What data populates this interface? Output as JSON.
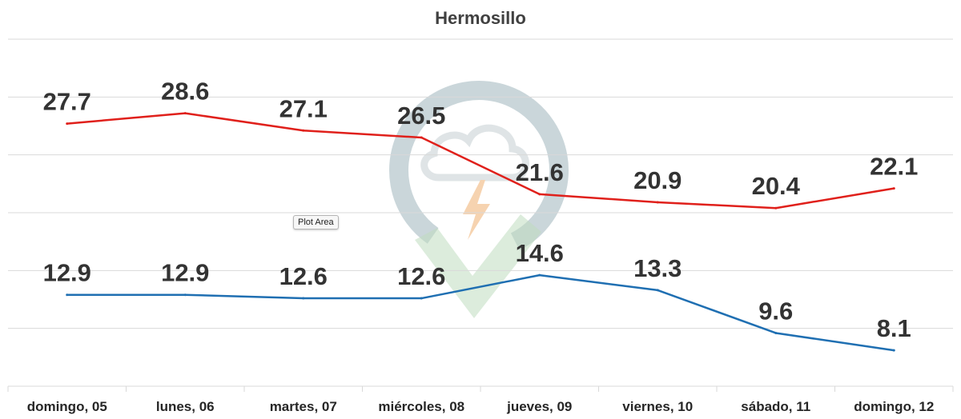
{
  "chart_data": {
    "type": "line",
    "title": "Hermosillo",
    "xlabel": "",
    "ylabel": "",
    "categories": [
      "domingo, 05",
      "lunes, 06",
      "martes, 07",
      "miércoles, 08",
      "jueves, 09",
      "viernes, 10",
      "sábado, 11",
      "domingo, 12"
    ],
    "series": [
      {
        "values": [
          27.7,
          28.6,
          27.1,
          26.5,
          21.6,
          20.9,
          20.4,
          22.1
        ],
        "color": "#e0201b"
      },
      {
        "values": [
          12.9,
          12.9,
          12.6,
          12.6,
          14.6,
          13.3,
          9.6,
          8.1
        ],
        "color": "#1f6fb2"
      }
    ],
    "ylim": [
      5,
      35
    ],
    "y_gridlines": [
      5,
      10,
      15,
      20,
      25,
      30,
      35
    ],
    "grid": true,
    "legend": "none",
    "data_labels": true,
    "gridline_color": "#d9d9d9"
  },
  "tooltip": {
    "text": "Plot Area"
  },
  "watermark": {
    "icon": "cloud-check-logo-icon",
    "ring_color": "#9fb5bd",
    "check_color": "#8cc08c",
    "bolt_color": "#f0b070"
  }
}
